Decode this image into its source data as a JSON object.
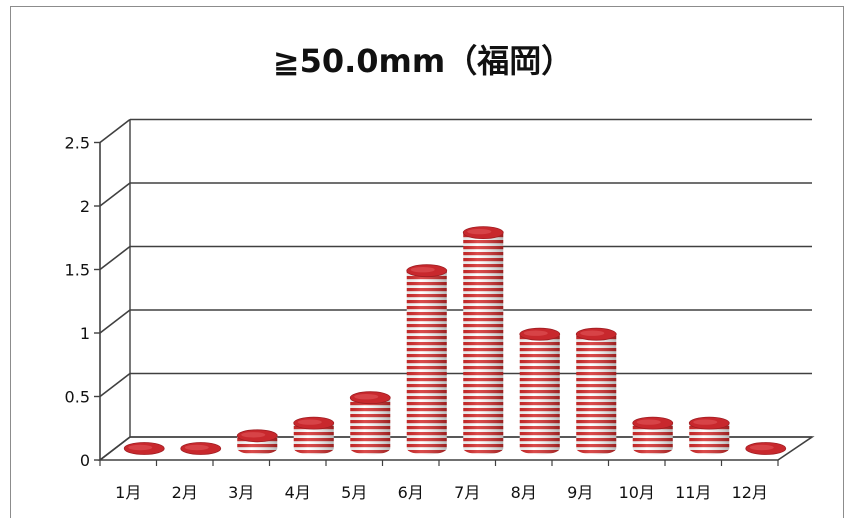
{
  "chart_data": {
    "type": "bar",
    "title": "≧50.0mm（福岡）",
    "xlabel": "",
    "ylabel": "",
    "categories": [
      "1月",
      "2月",
      "3月",
      "4月",
      "5月",
      "6月",
      "7月",
      "8月",
      "9月",
      "10月",
      "11月",
      "12月"
    ],
    "values": [
      0,
      0,
      0.1,
      0.2,
      0.4,
      1.4,
      1.7,
      0.9,
      0.9,
      0.2,
      0.2,
      0
    ],
    "ylim": [
      0,
      2.5
    ],
    "yticks": [
      "0",
      "0.5",
      "1",
      "1.5",
      "2",
      "2.5"
    ],
    "grid": true,
    "style": "3d-cylinder",
    "colors": {
      "bar": "#cc2a2a",
      "stripe": "#ffffff",
      "grid": "#404040"
    }
  }
}
